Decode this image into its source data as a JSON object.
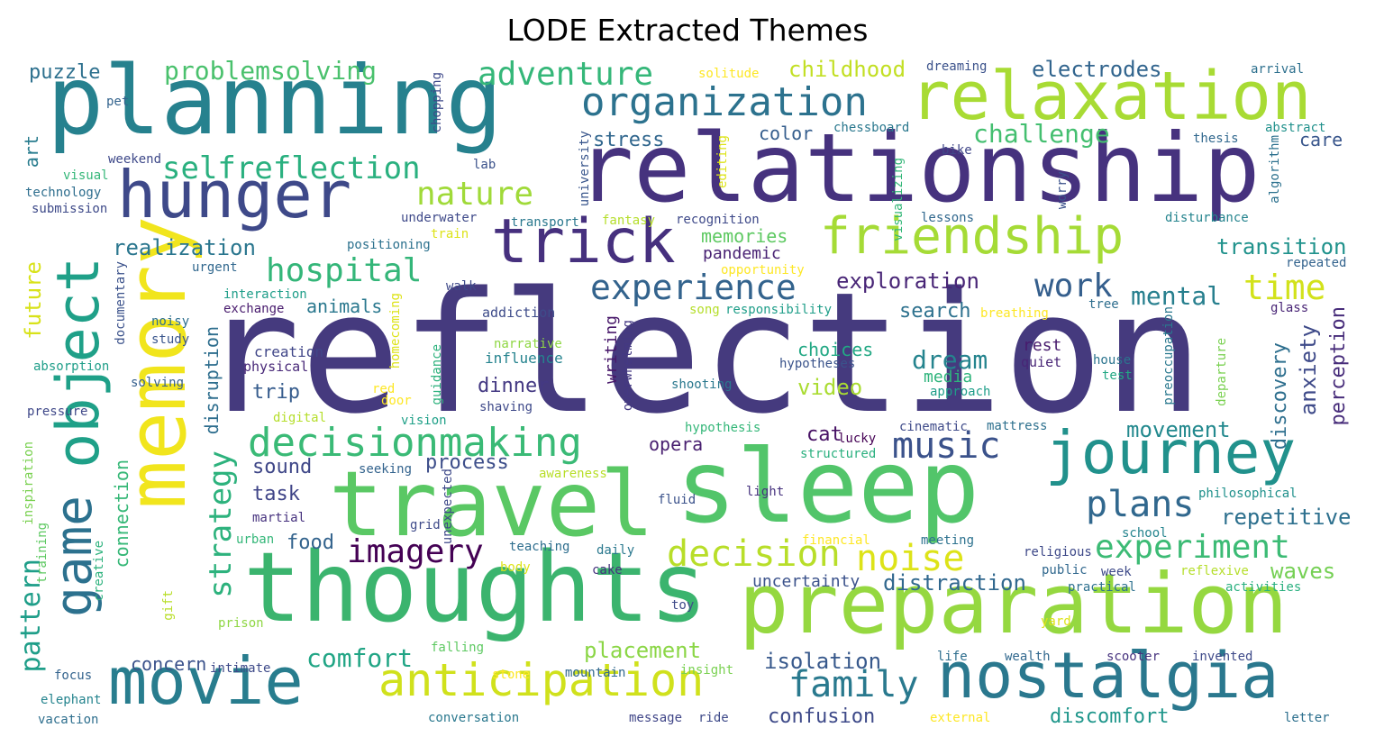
{
  "title": "LODE Extracted Themes",
  "words": [
    {
      "text": "reflection",
      "color": "#453a7e"
    },
    {
      "text": "relationship",
      "color": "#46327e"
    },
    {
      "text": "thoughts",
      "color": "#3bb46e"
    },
    {
      "text": "planning",
      "color": "#26818e"
    },
    {
      "text": "sleep",
      "color": "#52c56a"
    },
    {
      "text": "travel",
      "color": "#5ac864"
    },
    {
      "text": "preparation",
      "color": "#95d840"
    },
    {
      "text": "memory",
      "color": "#f1e51d"
    },
    {
      "text": "relaxation",
      "color": "#a8db34"
    },
    {
      "text": "object",
      "color": "#1fa088"
    },
    {
      "text": "hunger",
      "color": "#3e4989"
    },
    {
      "text": "movie",
      "color": "#287d8e"
    },
    {
      "text": "nostalgia",
      "color": "#2a788e"
    },
    {
      "text": "journey",
      "color": "#21918c"
    },
    {
      "text": "game",
      "color": "#2c718e"
    },
    {
      "text": "friendship",
      "color": "#a5db36"
    },
    {
      "text": "trick",
      "color": "#46307e"
    },
    {
      "text": "anticipation",
      "color": "#d0e11c"
    },
    {
      "text": "decisionmaking",
      "color": "#3aba76"
    },
    {
      "text": "organization",
      "color": "#2c728e"
    },
    {
      "text": "experience",
      "color": "#33638d"
    },
    {
      "text": "experiment",
      "color": "#3cbb75"
    },
    {
      "text": "decision",
      "color": "#b8de29"
    },
    {
      "text": "imagery",
      "color": "#440154"
    },
    {
      "text": "hospital",
      "color": "#34b679"
    },
    {
      "text": "selfreflection",
      "color": "#2ab07f"
    },
    {
      "text": "adventure",
      "color": "#35b779"
    },
    {
      "text": "family",
      "color": "#29798e"
    },
    {
      "text": "music",
      "color": "#3b528b"
    },
    {
      "text": "strategy",
      "color": "#2db27d"
    },
    {
      "text": "noise",
      "color": "#dde318"
    },
    {
      "text": "plans",
      "color": "#31688e"
    },
    {
      "text": "nature",
      "color": "#a0da39"
    },
    {
      "text": "time",
      "color": "#d2e21b"
    },
    {
      "text": "pattern",
      "color": "#1f9e89"
    },
    {
      "text": "problemsolving",
      "color": "#4ac16d"
    },
    {
      "text": "work",
      "color": "#355f8d"
    },
    {
      "text": "mental",
      "color": "#277f8e"
    },
    {
      "text": "comfort",
      "color": "#21a585"
    },
    {
      "text": "dream",
      "color": "#25848e"
    },
    {
      "text": "challenge",
      "color": "#44bf70"
    },
    {
      "text": "childhood",
      "color": "#c2df23"
    },
    {
      "text": "electrodes",
      "color": "#32658e"
    },
    {
      "text": "future",
      "color": "#d8e219"
    },
    {
      "text": "waves",
      "color": "#75d054"
    },
    {
      "text": "placement",
      "color": "#8bd646"
    },
    {
      "text": "isolation",
      "color": "#38598c"
    },
    {
      "text": "distraction",
      "color": "#31688e"
    },
    {
      "text": "movement",
      "color": "#23898e"
    },
    {
      "text": "repetitive",
      "color": "#2d708e"
    },
    {
      "text": "exploration",
      "color": "#482576"
    },
    {
      "text": "anxiety",
      "color": "#3e4a89"
    },
    {
      "text": "discovery",
      "color": "#2e6f8e"
    },
    {
      "text": "perception",
      "color": "#472c7a"
    },
    {
      "text": "confusion",
      "color": "#3e4a89"
    },
    {
      "text": "discomfort",
      "color": "#1f968b"
    },
    {
      "text": "memories",
      "color": "#5ec962"
    },
    {
      "text": "transition",
      "color": "#20928c"
    },
    {
      "text": "realization",
      "color": "#2a768e"
    },
    {
      "text": "search",
      "color": "#2d718e"
    },
    {
      "text": "puzzle",
      "color": "#2d708e"
    },
    {
      "text": "process",
      "color": "#3d4e8a"
    },
    {
      "text": "connection",
      "color": "#37b878"
    },
    {
      "text": "trip",
      "color": "#365c8d"
    },
    {
      "text": "food",
      "color": "#33638d"
    },
    {
      "text": "sound",
      "color": "#3f4788"
    },
    {
      "text": "task",
      "color": "#404588"
    },
    {
      "text": "video",
      "color": "#aadc32"
    },
    {
      "text": "uncertainty",
      "color": "#3b528b"
    },
    {
      "text": "choices",
      "color": "#22a884"
    },
    {
      "text": "dinner",
      "color": "#443983"
    },
    {
      "text": "stress",
      "color": "#31678e"
    },
    {
      "text": "disruption",
      "color": "#2e6e8e"
    },
    {
      "text": "opera",
      "color": "#481f70"
    },
    {
      "text": "animals",
      "color": "#2a788e"
    },
    {
      "text": "art",
      "color": "#287c8e"
    },
    {
      "text": "care",
      "color": "#39568c"
    },
    {
      "text": "color",
      "color": "#355e8d"
    },
    {
      "text": "cat",
      "color": "#471164"
    },
    {
      "text": "media",
      "color": "#2fb47c"
    },
    {
      "text": "pandemic",
      "color": "#482173"
    },
    {
      "text": "concern",
      "color": "#3b528b"
    },
    {
      "text": "rest",
      "color": "#481b6d"
    },
    {
      "text": "writing",
      "color": "#48186a"
    },
    {
      "text": "creation",
      "color": "#404688"
    },
    {
      "text": "influence",
      "color": "#25838e"
    },
    {
      "text": "physical",
      "color": "#482878"
    },
    {
      "text": "addiction",
      "color": "#3e4c8a"
    },
    {
      "text": "narrative",
      "color": "#8fd744"
    },
    {
      "text": "quiet",
      "color": "#482576"
    },
    {
      "text": "house",
      "color": "#2b748e"
    },
    {
      "text": "test",
      "color": "#22a884"
    },
    {
      "text": "hypotheses",
      "color": "#3a538b"
    },
    {
      "text": "exchange",
      "color": "#481b6d"
    },
    {
      "text": "interaction",
      "color": "#1f9e89"
    },
    {
      "text": "documentary",
      "color": "#3b528b"
    },
    {
      "text": "noisy",
      "color": "#2e6f8e"
    },
    {
      "text": "study",
      "color": "#39558c"
    },
    {
      "text": "absorption",
      "color": "#1f9e89"
    },
    {
      "text": "solving",
      "color": "#355f8d"
    },
    {
      "text": "pressure",
      "color": "#3f4889"
    },
    {
      "text": "homecoming",
      "color": "#dde318"
    },
    {
      "text": "guidance",
      "color": "#2db27d"
    },
    {
      "text": "red",
      "color": "#fde725"
    },
    {
      "text": "door",
      "color": "#fde725"
    },
    {
      "text": "shooting",
      "color": "#2a788e"
    },
    {
      "text": "approach",
      "color": "#1f9e89"
    },
    {
      "text": "overwhelming",
      "color": "#443983"
    },
    {
      "text": "shaving",
      "color": "#3e4989"
    },
    {
      "text": "vision",
      "color": "#1fa088"
    },
    {
      "text": "digital",
      "color": "#b5de2b"
    },
    {
      "text": "hypothesis",
      "color": "#35b779"
    },
    {
      "text": "lucky",
      "color": "#440154"
    },
    {
      "text": "cinematic",
      "color": "#3e4a89"
    },
    {
      "text": "mattress",
      "color": "#2d708e"
    },
    {
      "text": "structured",
      "color": "#2ab07f"
    },
    {
      "text": "seeking",
      "color": "#33638d"
    },
    {
      "text": "awareness",
      "color": "#b8de29"
    },
    {
      "text": "unexpected",
      "color": "#3e4989"
    },
    {
      "text": "fluid",
      "color": "#3b528b"
    },
    {
      "text": "light",
      "color": "#46327e"
    },
    {
      "text": "philosophical",
      "color": "#21918c"
    },
    {
      "text": "departure",
      "color": "#7ad151"
    },
    {
      "text": "preoccupation",
      "color": "#2a788e"
    },
    {
      "text": "breathing",
      "color": "#fde725"
    },
    {
      "text": "tree",
      "color": "#2e6e8e"
    },
    {
      "text": "glass",
      "color": "#482475"
    },
    {
      "text": "repeated",
      "color": "#33638d"
    },
    {
      "text": "disturbance",
      "color": "#25848e"
    },
    {
      "text": "lessons",
      "color": "#31688e"
    },
    {
      "text": "worry",
      "color": "#3b528b"
    },
    {
      "text": "visualizing",
      "color": "#35b779"
    },
    {
      "text": "algorithm",
      "color": "#2c718e"
    },
    {
      "text": "thesis",
      "color": "#31688e"
    },
    {
      "text": "abstract",
      "color": "#21918c"
    },
    {
      "text": "arrival",
      "color": "#2d708e"
    },
    {
      "text": "bike",
      "color": "#404688"
    },
    {
      "text": "chessboard",
      "color": "#2a788e"
    },
    {
      "text": "editing",
      "color": "#dde318"
    },
    {
      "text": "university",
      "color": "#39568c"
    },
    {
      "text": "dreaming",
      "color": "#3b528b"
    },
    {
      "text": "solitude",
      "color": "#fde725"
    },
    {
      "text": "chopping",
      "color": "#3e4989"
    },
    {
      "text": "lab",
      "color": "#3b528b"
    },
    {
      "text": "underwater",
      "color": "#3e4989"
    },
    {
      "text": "transport",
      "color": "#2a788e"
    },
    {
      "text": "fantasy",
      "color": "#b5de2b"
    },
    {
      "text": "recognition",
      "color": "#3e4989"
    },
    {
      "text": "train",
      "color": "#dde318"
    },
    {
      "text": "positioning",
      "color": "#2c718e"
    },
    {
      "text": "urgent",
      "color": "#31688e"
    },
    {
      "text": "walk",
      "color": "#3e4989"
    },
    {
      "text": "opportunity",
      "color": "#fde725"
    },
    {
      "text": "song",
      "color": "#b5de2b"
    },
    {
      "text": "responsibility",
      "color": "#1f9e89"
    },
    {
      "text": "pet",
      "color": "#33638d"
    },
    {
      "text": "weekend",
      "color": "#3e4989"
    },
    {
      "text": "visual",
      "color": "#35b779"
    },
    {
      "text": "technology",
      "color": "#2e6e8e"
    },
    {
      "text": "submission",
      "color": "#3e4a89"
    },
    {
      "text": "inspiration",
      "color": "#7ad151"
    },
    {
      "text": "training",
      "color": "#5ec962"
    },
    {
      "text": "creative",
      "color": "#2db27d"
    },
    {
      "text": "gift",
      "color": "#b8de29"
    },
    {
      "text": "prison",
      "color": "#8fd744"
    },
    {
      "text": "focus",
      "color": "#33638d"
    },
    {
      "text": "elephant",
      "color": "#25848e"
    },
    {
      "text": "vacation",
      "color": "#2e6f8e"
    },
    {
      "text": "intimate",
      "color": "#3e4a89"
    },
    {
      "text": "martial",
      "color": "#46327e"
    },
    {
      "text": "urban",
      "color": "#35b779"
    },
    {
      "text": "grid",
      "color": "#3e4a89"
    },
    {
      "text": "falling",
      "color": "#5ec962"
    },
    {
      "text": "conversation",
      "color": "#2a788e"
    },
    {
      "text": "message",
      "color": "#404688"
    },
    {
      "text": "stone",
      "color": "#fde725"
    },
    {
      "text": "mountain",
      "color": "#31688e"
    },
    {
      "text": "insight",
      "color": "#7ad151"
    },
    {
      "text": "ride",
      "color": "#3e4a89"
    },
    {
      "text": "teaching",
      "color": "#2e6e8e"
    },
    {
      "text": "body",
      "color": "#dde318"
    },
    {
      "text": "daily",
      "color": "#2a788e"
    },
    {
      "text": "cake",
      "color": "#46327e"
    },
    {
      "text": "toy",
      "color": "#3e4a89"
    },
    {
      "text": "financial",
      "color": "#fde725"
    },
    {
      "text": "meeting",
      "color": "#2c718e"
    },
    {
      "text": "religious",
      "color": "#3e4989"
    },
    {
      "text": "public",
      "color": "#31688e"
    },
    {
      "text": "practical",
      "color": "#2d708e"
    },
    {
      "text": "week",
      "color": "#3e4a89"
    },
    {
      "text": "school",
      "color": "#25848e"
    },
    {
      "text": "reflexive",
      "color": "#b5de2b"
    },
    {
      "text": "activities",
      "color": "#2ab07f"
    },
    {
      "text": "yard",
      "color": "#dde318"
    },
    {
      "text": "life",
      "color": "#2e6e8e"
    },
    {
      "text": "wealth",
      "color": "#31688e"
    },
    {
      "text": "scooter",
      "color": "#46327e"
    },
    {
      "text": "invented",
      "color": "#3e4a89"
    },
    {
      "text": "external",
      "color": "#fde725"
    },
    {
      "text": "letter",
      "color": "#2d708e"
    }
  ]
}
